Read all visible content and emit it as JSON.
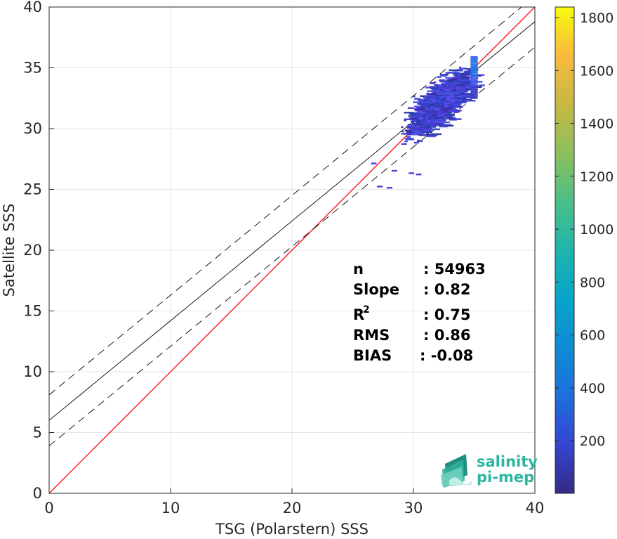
{
  "chart_data": {
    "type": "heatmap",
    "title": "",
    "xlabel": "TSG (Polarstern) SSS",
    "ylabel": "Satellite SSS",
    "xlim": [
      0,
      40
    ],
    "ylim": [
      0,
      40
    ],
    "x_ticks": [
      "0",
      "10",
      "20",
      "30",
      "40"
    ],
    "y_ticks": [
      "0",
      "5",
      "10",
      "15",
      "20",
      "25",
      "30",
      "35",
      "40"
    ],
    "grid": true,
    "colormap": "parula",
    "colorbar": {
      "min": 1,
      "max": 1840,
      "ticks": [
        "200",
        "400",
        "600",
        "800",
        "1000",
        "1200",
        "1400",
        "1600",
        "1800"
      ]
    },
    "lines": [
      {
        "name": "1:1",
        "style": "solid",
        "color": "#ff0000",
        "points": [
          [
            0,
            0
          ],
          [
            40,
            40
          ]
        ]
      },
      {
        "name": "fit",
        "style": "solid",
        "color": "#000000",
        "points": [
          [
            0,
            6.0
          ],
          [
            40,
            38.8
          ]
        ]
      },
      {
        "name": "fit+2σ",
        "style": "dashed",
        "color": "#000000",
        "points": [
          [
            0,
            8.1
          ],
          [
            40,
            40.9
          ]
        ]
      },
      {
        "name": "fit-2σ",
        "style": "dashed",
        "color": "#000000",
        "points": [
          [
            0,
            3.9
          ],
          [
            40,
            36.7
          ]
        ]
      }
    ],
    "density_cloud": {
      "x_range": [
        26.3,
        35.5
      ],
      "y_range": [
        25.2,
        36.2
      ],
      "center": [
        32.0,
        32.2
      ],
      "max_at": [
        35.2,
        35.0
      ]
    },
    "stats": [
      {
        "label": "n",
        "sup": "",
        "value": ": 54963"
      },
      {
        "label": "Slope",
        "sup": "",
        "value": ": 0.82"
      },
      {
        "label": "R",
        "sup": "2",
        "value": ": 0.75"
      },
      {
        "label": "RMS",
        "sup": "",
        "value": ": 0.86"
      },
      {
        "label": "BIAS",
        "sup": "",
        "value": ": -0.08"
      }
    ],
    "logo": {
      "line1": "salinity",
      "line2": "pi-mep"
    },
    "colors": {
      "one_to_one": "#ff0000",
      "fit": "#000000",
      "logo": "#2bb5a0",
      "grid": "#e6e6e6"
    }
  }
}
